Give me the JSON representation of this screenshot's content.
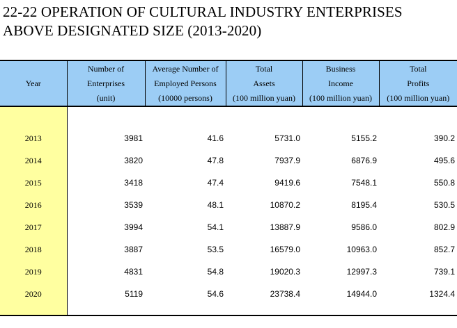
{
  "title": {
    "line1": "22-22  OPERATION OF CULTURAL INDUSTRY ENTERPRISES",
    "line2": "ABOVE DESIGNATED SIZE (2013-2020)"
  },
  "colors": {
    "header_bg": "#9ccdf5",
    "year_column_bg": "#ffffa0"
  },
  "table": {
    "headers": [
      {
        "lines": [
          "Year"
        ]
      },
      {
        "lines": [
          "Number of",
          "Enterprises",
          "(unit)"
        ]
      },
      {
        "lines": [
          "Average Number of",
          "Employed Persons",
          "(10000 persons)"
        ]
      },
      {
        "lines": [
          "Total",
          "Assets",
          "(100 million yuan)"
        ]
      },
      {
        "lines": [
          "Business",
          "Income",
          "(100 million yuan)"
        ]
      },
      {
        "lines": [
          "Total",
          "Profits",
          "(100 million yuan)"
        ]
      }
    ],
    "rows": [
      [
        "2013",
        "3981",
        "41.6",
        "5731.0",
        "5155.2",
        "390.2"
      ],
      [
        "2014",
        "3820",
        "47.8",
        "7937.9",
        "6876.9",
        "495.6"
      ],
      [
        "2015",
        "3418",
        "47.4",
        "9419.6",
        "7548.1",
        "550.8"
      ],
      [
        "2016",
        "3539",
        "48.1",
        "10870.2",
        "8195.4",
        "530.5"
      ],
      [
        "2017",
        "3994",
        "54.1",
        "13887.9",
        "9586.0",
        "802.9"
      ],
      [
        "2018",
        "3887",
        "53.5",
        "16579.0",
        "10963.0",
        "852.7"
      ],
      [
        "2019",
        "4831",
        "54.8",
        "19020.3",
        "12997.3",
        "739.1"
      ],
      [
        "2020",
        "5119",
        "54.6",
        "23738.4",
        "14944.0",
        "1324.4"
      ]
    ]
  }
}
